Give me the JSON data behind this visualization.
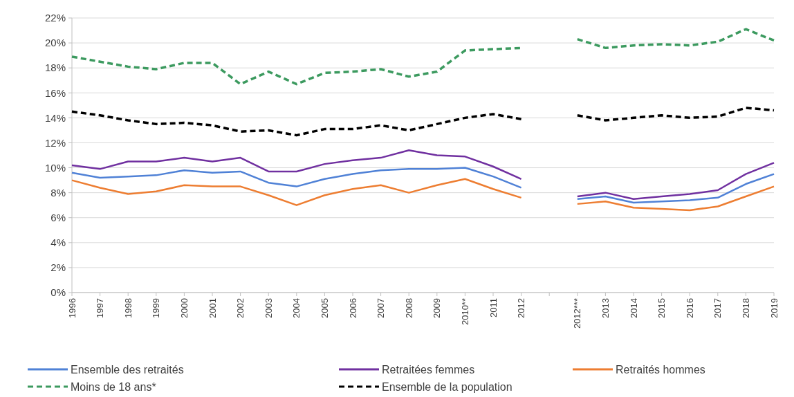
{
  "chart_data": {
    "type": "line",
    "categories": [
      "1996",
      "1997",
      "1998",
      "1999",
      "2000",
      "2001",
      "2002",
      "2003",
      "2004",
      "2005",
      "2006",
      "2007",
      "2008",
      "2009",
      "2010**",
      "2011",
      "2012",
      null,
      "2012***",
      "2013",
      "2014",
      "2015",
      "2016",
      "2017",
      "2018",
      "2019"
    ],
    "series": [
      {
        "name": "Ensemble des retraités",
        "color": "#4f81d6",
        "line_style": "solid",
        "values": [
          9.6,
          9.2,
          9.3,
          9.4,
          9.8,
          9.6,
          9.7,
          8.8,
          8.5,
          9.1,
          9.5,
          9.8,
          9.9,
          9.9,
          10.0,
          9.3,
          8.4,
          null,
          7.5,
          7.7,
          7.2,
          7.3,
          7.4,
          7.6,
          8.7,
          9.5
        ]
      },
      {
        "name": "Retraitées femmes",
        "color": "#7030a0",
        "line_style": "solid",
        "values": [
          10.2,
          9.9,
          10.5,
          10.5,
          10.8,
          10.5,
          10.8,
          9.7,
          9.7,
          10.3,
          10.6,
          10.8,
          11.4,
          11.0,
          10.9,
          10.1,
          9.1,
          null,
          7.7,
          8.0,
          7.5,
          7.7,
          7.9,
          8.2,
          9.5,
          10.4
        ]
      },
      {
        "name": "Retraités hommes",
        "color": "#ed7d31",
        "line_style": "solid",
        "values": [
          9.0,
          8.4,
          7.9,
          8.1,
          8.6,
          8.5,
          8.5,
          7.8,
          7.0,
          7.8,
          8.3,
          8.6,
          8.0,
          8.6,
          9.1,
          8.3,
          7.6,
          null,
          7.1,
          7.3,
          6.8,
          6.7,
          6.6,
          6.9,
          7.7,
          8.5
        ]
      },
      {
        "name": "Moins de 18 ans*",
        "color": "#3c9a5f",
        "line_style": "dashed",
        "values": [
          18.9,
          18.5,
          18.1,
          17.9,
          18.4,
          18.4,
          16.7,
          17.7,
          16.7,
          17.6,
          17.7,
          17.9,
          17.3,
          17.7,
          19.4,
          19.5,
          19.6,
          null,
          20.3,
          19.6,
          19.8,
          19.9,
          19.8,
          20.1,
          21.1,
          20.2
        ]
      },
      {
        "name": "Ensemble de la population",
        "color": "#000000",
        "line_style": "dashed",
        "values": [
          14.5,
          14.2,
          13.8,
          13.5,
          13.6,
          13.4,
          12.9,
          13.0,
          12.6,
          13.1,
          13.1,
          13.4,
          13.0,
          13.5,
          14.0,
          14.3,
          13.9,
          null,
          14.2,
          13.8,
          14.0,
          14.2,
          14.0,
          14.1,
          14.8,
          14.6
        ]
      }
    ],
    "ylim": [
      0,
      22
    ],
    "yticks": [
      {
        "value": 0,
        "label": "0%"
      },
      {
        "value": 2,
        "label": "2%"
      },
      {
        "value": 4,
        "label": "4%"
      },
      {
        "value": 6,
        "label": "6%"
      },
      {
        "value": 8,
        "label": "8%"
      },
      {
        "value": 10,
        "label": "10%"
      },
      {
        "value": 12,
        "label": "12%"
      },
      {
        "value": 14,
        "label": "14%"
      },
      {
        "value": 16,
        "label": "16%"
      },
      {
        "value": 18,
        "label": "18%"
      },
      {
        "value": 20,
        "label": "20%"
      },
      {
        "value": 22,
        "label": "22%"
      }
    ],
    "grid": "y",
    "legend": "bottom"
  }
}
